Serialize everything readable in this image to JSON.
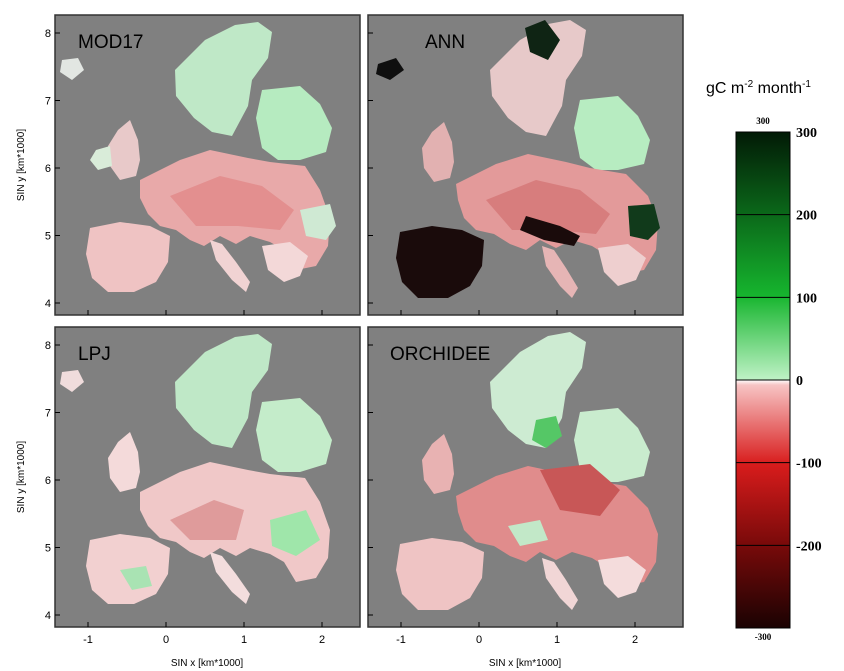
{
  "panels": [
    {
      "id": "mod17",
      "title": "MOD17"
    },
    {
      "id": "ann",
      "title": "ANN"
    },
    {
      "id": "lpj",
      "title": "LPJ"
    },
    {
      "id": "orchidee",
      "title": "ORCHIDEE"
    }
  ],
  "axes": {
    "xlabel": "SIN x [km*1000]",
    "ylabel": "SIN y [km*1000]",
    "x_ticks": [
      "-1",
      "0",
      "1",
      "2"
    ],
    "y_ticks": [
      "8",
      "7",
      "6",
      "5",
      "4"
    ]
  },
  "colorbar": {
    "units_base": "gC m",
    "units_exp1": "-2",
    "units_mid": " month",
    "units_exp2": "-1",
    "top_small": "300",
    "bottom_small": "-300",
    "ticks": [
      "300",
      "200",
      "100",
      "0",
      "-100",
      "-200"
    ],
    "range": [
      -300,
      300
    ],
    "colors": {
      "background": "#808080",
      "darkest_positive": "#021a06",
      "mid_positive": "#16b52e",
      "light_positive": "#bff2c6",
      "zero": "#ffffff",
      "light_negative": "#f7c4c4",
      "mid_negative": "#d81c1c",
      "darkest_negative": "#1a0202"
    }
  }
}
